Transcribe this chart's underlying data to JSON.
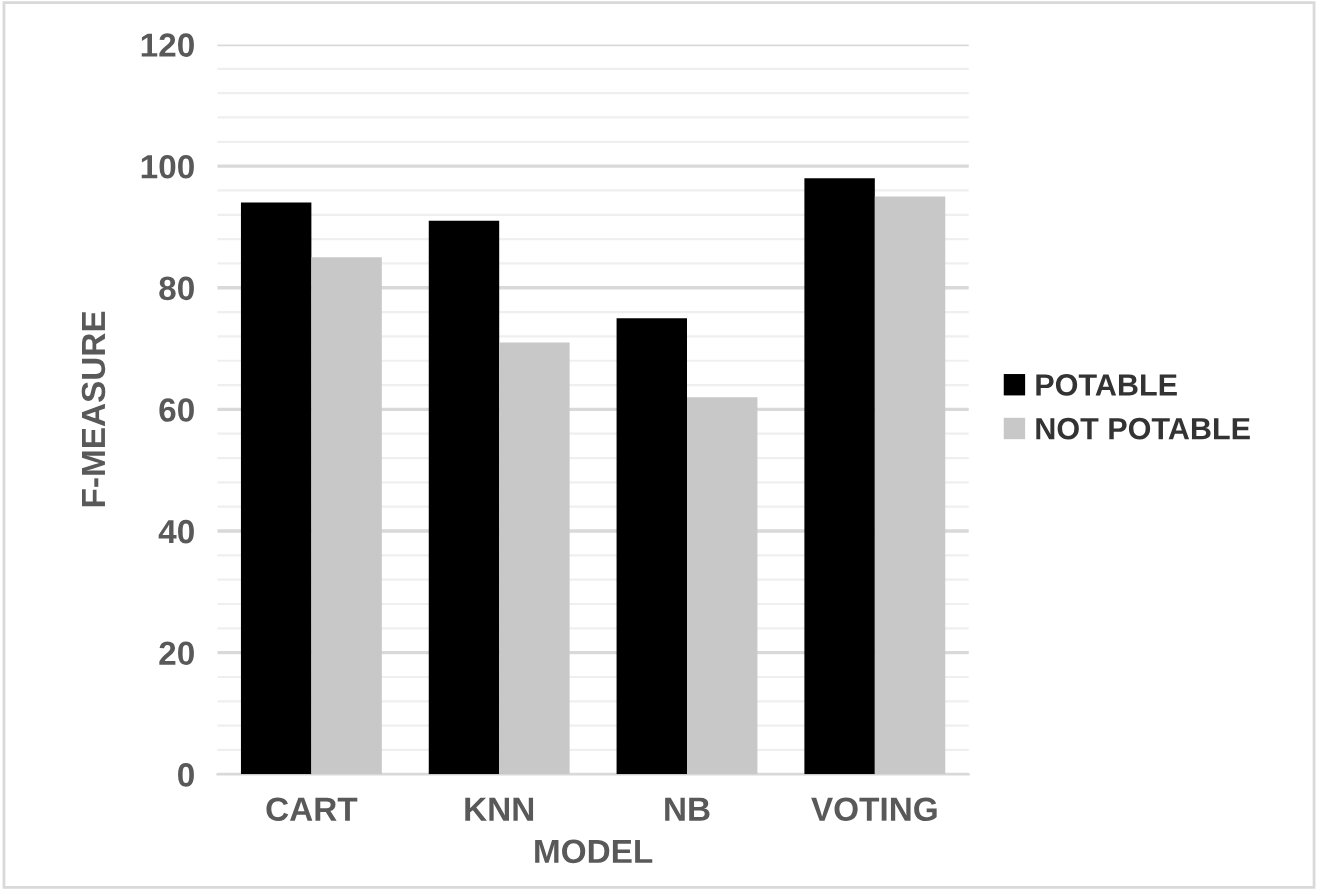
{
  "chart_data": {
    "type": "bar",
    "xlabel": "MODEL",
    "ylabel": "F-MEASURE",
    "categories": [
      "CART",
      "KNN",
      "NB",
      "VOTING"
    ],
    "series": [
      {
        "name": "POTABLE",
        "color": "#000000",
        "values": [
          94,
          91,
          75,
          98
        ]
      },
      {
        "name": "NOT POTABLE",
        "color": "#c8c8c8",
        "values": [
          85,
          71,
          62,
          95
        ]
      }
    ],
    "ylim": [
      0,
      120
    ],
    "yticks": [
      0,
      {
        "value": 4,
        "label": null
      },
      {
        "value": 8,
        "label": null
      },
      {
        "value": 12,
        "label": null
      },
      {
        "value": 16,
        "label": null
      },
      20,
      {
        "value": 24,
        "label": null
      },
      {
        "value": 28,
        "label": null
      },
      {
        "value": 32,
        "label": null
      },
      {
        "value": 36,
        "label": null
      },
      40,
      {
        "value": 44,
        "label": null
      },
      {
        "value": 48,
        "label": null
      },
      {
        "value": 52,
        "label": null
      },
      {
        "value": 56,
        "label": null
      },
      60,
      {
        "value": 64,
        "label": null
      },
      {
        "value": 68,
        "label": null
      },
      {
        "value": 72,
        "label": null
      },
      {
        "value": 76,
        "label": null
      },
      80,
      {
        "value": 84,
        "label": null
      },
      {
        "value": 88,
        "label": null
      },
      {
        "value": 92,
        "label": null
      },
      {
        "value": 96,
        "label": null
      },
      100,
      {
        "value": 104,
        "label": null
      },
      {
        "value": 108,
        "label": null
      },
      {
        "value": 112,
        "label": null
      },
      {
        "value": 116,
        "label": null
      },
      120
    ],
    "grid": "y",
    "legend": "right"
  }
}
